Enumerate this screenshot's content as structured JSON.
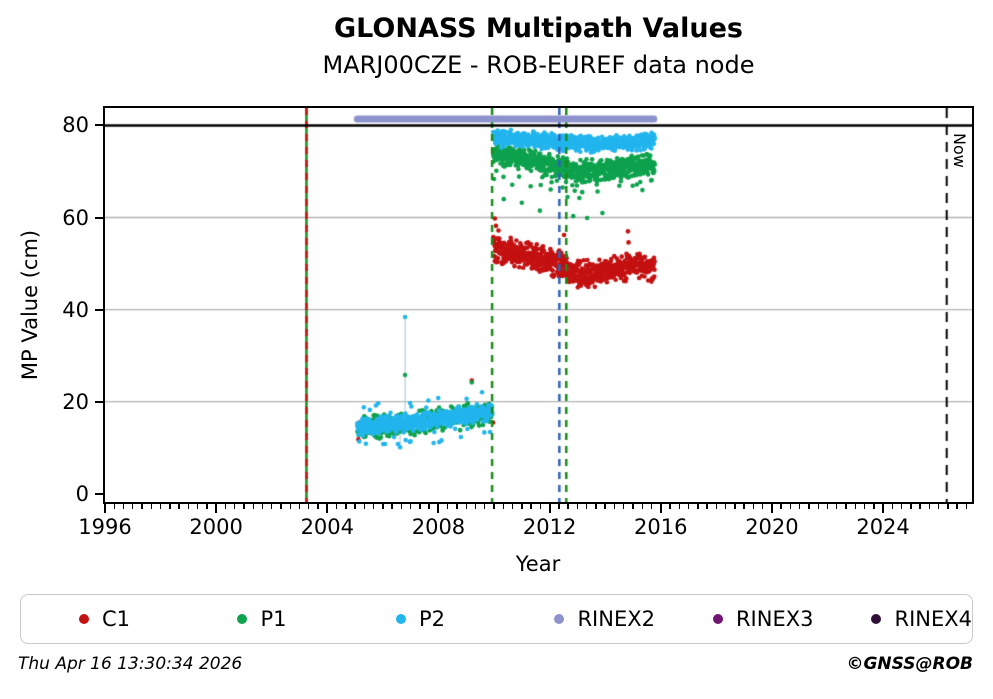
{
  "title": "GLONASS Multipath Values",
  "subtitle": "MARJ00CZE - ROB-EUREF data node",
  "footer": {
    "timestamp": "Thu Apr 16 13:30:34 2026",
    "copyright": "©GNSS@ROB"
  },
  "legend": [
    {
      "label": "C1",
      "color": "#c41111"
    },
    {
      "label": "P1",
      "color": "#0ea24d"
    },
    {
      "label": "P2",
      "color": "#22b5ee"
    },
    {
      "label": "RINEX2",
      "color": "#8d92cd"
    },
    {
      "label": "RINEX3",
      "color": "#731472"
    },
    {
      "label": "RINEX4",
      "color": "#311038"
    }
  ],
  "chart_data": {
    "type": "scatter",
    "title": "GLONASS Multipath Values",
    "subtitle": "MARJ00CZE - ROB-EUREF data node",
    "xlabel": "Year",
    "ylabel": "MP Value (cm)",
    "xlim": [
      1996,
      2027.2
    ],
    "ylim": [
      -1.8,
      83.8
    ],
    "x_major_ticks": [
      1996,
      2000,
      2004,
      2008,
      2012,
      2016,
      2020,
      2024
    ],
    "x_minor_step": 0.3333333,
    "y_ticks": [
      0,
      20,
      40,
      60,
      80
    ],
    "gridlines_y": [
      20,
      40,
      60
    ],
    "grid_color": "#b3b3b3",
    "limit_line": {
      "y": 80,
      "color": "#000000",
      "width": 2.5
    },
    "rinex2_bar": {
      "name": "RINEX2",
      "y": 81.4,
      "x_start": 2005.08,
      "x_end": 2015.75,
      "color": "#8d92cd",
      "thickness": 7
    },
    "now_line": {
      "x": 2026.29,
      "label": "Now",
      "color": "#000000",
      "dash": [
        10,
        7
      ],
      "width": 2
    },
    "event_lines": [
      {
        "x": 2003.25,
        "color": "#1a8c1a",
        "style": "solid",
        "width": 2.5
      },
      {
        "x": 2003.25,
        "color": "#cf1212",
        "style": "dashed",
        "width": 2.5
      },
      {
        "x": 2009.93,
        "color": "#1a8c1a",
        "style": "dashed",
        "width": 2.5
      },
      {
        "x": 2012.35,
        "color": "#2f63bb",
        "style": "dashed",
        "width": 2.5
      },
      {
        "x": 2012.6,
        "color": "#1a8c1a",
        "style": "dashed",
        "width": 2.5
      }
    ],
    "series": [
      {
        "name": "C1",
        "color": "#c41111",
        "clusters": [
          {
            "x_start": 2005.1,
            "x_end": 2009.93,
            "trend": [
              [
                2005.1,
                14.2
              ],
              [
                2009.93,
                17.3
              ]
            ],
            "spread": 2.4,
            "step": 0.1,
            "clip": [
              11.0,
              23.0
            ]
          },
          {
            "x_start": 2009.97,
            "x_end": 2015.78,
            "trend": [
              [
                2009.97,
                53.3
              ],
              [
                2010.6,
                52.4
              ],
              [
                2011.4,
                51.4
              ],
              [
                2012.3,
                49.8
              ],
              [
                2012.9,
                48.0
              ],
              [
                2013.5,
                47.6
              ],
              [
                2014.3,
                48.7
              ],
              [
                2015.1,
                49.4
              ],
              [
                2015.78,
                48.8
              ]
            ],
            "spread": 3.3,
            "step": 0.008,
            "clip": [
              42.2,
              60.4
            ]
          }
        ],
        "outliers": [
          [
            2005.12,
            11.8
          ],
          [
            2009.2,
            24.6
          ],
          [
            2010.03,
            59.8
          ],
          [
            2010.07,
            58.2
          ],
          [
            2010.16,
            57.2
          ],
          [
            2012.52,
            56.2
          ],
          [
            2014.82,
            57.0
          ],
          [
            2014.84,
            54.6
          ]
        ]
      },
      {
        "name": "P1",
        "color": "#0ea24d",
        "clusters": [
          {
            "x_start": 2005.08,
            "x_end": 2009.93,
            "trend": [
              [
                2005.08,
                14.0
              ],
              [
                2006.5,
                14.9
              ],
              [
                2008.0,
                16.0
              ],
              [
                2009.93,
                17.6
              ]
            ],
            "spread": 3.0,
            "step": 0.012,
            "clip": [
              11.2,
              24.5
            ]
          },
          {
            "x_start": 2009.97,
            "x_end": 2015.78,
            "trend": [
              [
                2009.97,
                73.8
              ],
              [
                2010.9,
                73.0
              ],
              [
                2011.9,
                72.0
              ],
              [
                2012.7,
                70.5
              ],
              [
                2013.3,
                70.1
              ],
              [
                2014.1,
                70.7
              ],
              [
                2015.1,
                71.4
              ],
              [
                2015.78,
                71.7
              ]
            ],
            "spread": 2.7,
            "step": 0.008,
            "tail": "low",
            "clip": [
              59.5,
              78.5
            ]
          }
        ],
        "outliers": [
          [
            2006.8,
            25.8
          ],
          [
            2009.2,
            24.2
          ],
          [
            2010.35,
            64.0
          ],
          [
            2011.0,
            63.2
          ],
          [
            2011.65,
            61.5
          ],
          [
            2012.85,
            60.3
          ],
          [
            2013.35,
            59.9
          ],
          [
            2013.9,
            61.0
          ]
        ]
      },
      {
        "name": "P2",
        "color": "#22b5ee",
        "clusters": [
          {
            "x_start": 2005.08,
            "x_end": 2009.93,
            "trend": [
              [
                2005.08,
                14.3
              ],
              [
                2006.5,
                15.1
              ],
              [
                2008.0,
                16.2
              ],
              [
                2009.3,
                17.4
              ],
              [
                2009.93,
                17.9
              ]
            ],
            "spread": 2.2,
            "step": 0.008,
            "tail": "both",
            "clip": [
              10.8,
              25.2
            ]
          },
          {
            "x_start": 2009.97,
            "x_end": 2015.78,
            "trend": [
              [
                2009.97,
                77.2
              ],
              [
                2011.5,
                76.9
              ],
              [
                2012.7,
                76.1
              ],
              [
                2013.6,
                75.9
              ],
              [
                2014.6,
                76.3
              ],
              [
                2015.78,
                76.5
              ]
            ],
            "spread": 2.0,
            "step": 0.008,
            "clip": [
              71.5,
              80.2
            ]
          }
        ],
        "outliers": [
          [
            2006.8,
            38.4
          ],
          [
            2006.62,
            10.1
          ]
        ],
        "connectors": [
          {
            "x": 2006.8,
            "y1": 38.4,
            "y2": 16.2
          },
          {
            "x": 2006.62,
            "y1": 10.1,
            "y2": 14.8
          }
        ]
      },
      {
        "name": "RINEX3",
        "color": "#731472",
        "clusters": [],
        "outliers": []
      },
      {
        "name": "RINEX4",
        "color": "#311038",
        "clusters": [],
        "outliers": []
      }
    ],
    "marker_radius": 2.3,
    "legend_position": "bottom"
  }
}
